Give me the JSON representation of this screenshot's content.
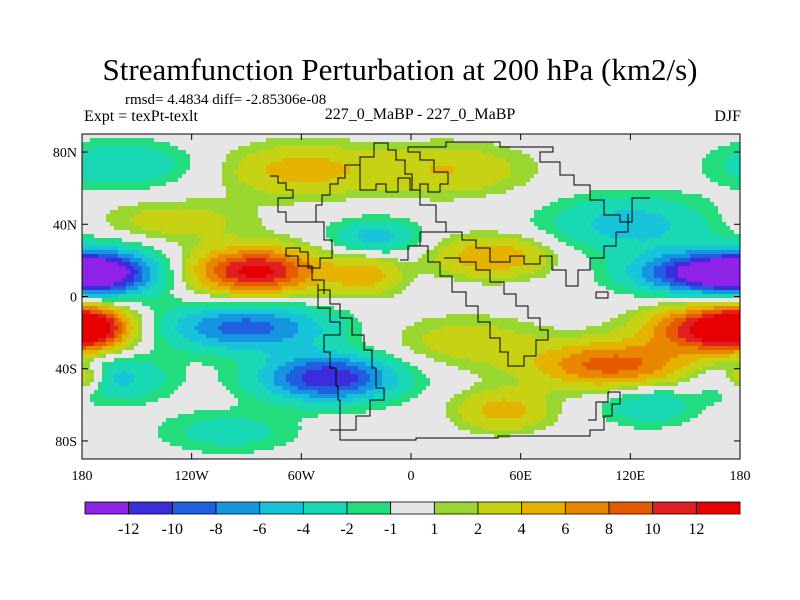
{
  "chart_data": {
    "type": "heatmap",
    "title": "Streamfunction Perturbation at 200 hPa (km2/s)",
    "subtitle_left_top": "rmsd= 4.4834 diff= -2.85306e-08",
    "subtitle_left": "Expt = texPt-texlt",
    "subtitle_center": "227_0_MaBP - 227_0_MaBP",
    "subtitle_right": "DJF",
    "xlabel": "",
    "ylabel": "",
    "xlim": [
      -180,
      180
    ],
    "ylim": [
      -90,
      90
    ],
    "x_ticks": [
      {
        "value": -180,
        "label": "180"
      },
      {
        "value": -120,
        "label": "120W"
      },
      {
        "value": -60,
        "label": "60W"
      },
      {
        "value": 0,
        "label": "0"
      },
      {
        "value": 60,
        "label": "60E"
      },
      {
        "value": 120,
        "label": "120E"
      },
      {
        "value": 180,
        "label": "180"
      }
    ],
    "y_ticks": [
      {
        "value": 80,
        "label": "80N"
      },
      {
        "value": 40,
        "label": "40N"
      },
      {
        "value": 0,
        "label": "0"
      },
      {
        "value": -40,
        "label": "40S"
      },
      {
        "value": -80,
        "label": "80S"
      }
    ],
    "colorbar": {
      "levels": [
        "-12",
        "-10",
        "-8",
        "-6",
        "-4",
        "-2",
        "-1",
        "1",
        "2",
        "4",
        "6",
        "8",
        "10",
        "12"
      ],
      "colors": [
        "#8e22e6",
        "#3b2ddc",
        "#1f5fe0",
        "#1696e0",
        "#16c3d8",
        "#18d9b4",
        "#22dc7e",
        "#e6e6e6",
        "#9ad630",
        "#c8d214",
        "#e6b200",
        "#e88600",
        "#e65a00",
        "#e02020",
        "#e60000"
      ]
    },
    "anomaly_centers": [
      {
        "lon": -168,
        "lat": 13,
        "value": -12,
        "sx": 22,
        "sy": 9
      },
      {
        "lon": 158,
        "lat": 13,
        "value": -12,
        "sx": 26,
        "sy": 8
      },
      {
        "lon": -45,
        "lat": -45,
        "value": -12,
        "sx": 26,
        "sy": 9
      },
      {
        "lon": -90,
        "lat": -17,
        "value": -9,
        "sx": 32,
        "sy": 9
      },
      {
        "lon": -165,
        "lat": -45,
        "value": -5,
        "sx": 22,
        "sy": 9
      },
      {
        "lon": -20,
        "lat": 33,
        "value": -5,
        "sx": 17,
        "sy": 7
      },
      {
        "lon": 120,
        "lat": 40,
        "value": -5,
        "sx": 32,
        "sy": 11
      },
      {
        "lon": 130,
        "lat": -60,
        "value": -4,
        "sx": 18,
        "sy": 8
      },
      {
        "lon": -158,
        "lat": 73,
        "value": -4,
        "sx": 26,
        "sy": 9
      },
      {
        "lon": -100,
        "lat": -75,
        "value": -3,
        "sx": 26,
        "sy": 8
      },
      {
        "lon": -85,
        "lat": 14,
        "value": 13,
        "sx": 24,
        "sy": 9
      },
      {
        "lon": 165,
        "lat": -18,
        "value": 13,
        "sx": 24,
        "sy": 9
      },
      {
        "lon": -175,
        "lat": -17,
        "value": 10,
        "sx": 14,
        "sy": 8
      },
      {
        "lon": 110,
        "lat": -38,
        "value": 9,
        "sx": 30,
        "sy": 9
      },
      {
        "lon": -178,
        "lat": -45,
        "value": 6,
        "sx": 8,
        "sy": 6
      },
      {
        "lon": 45,
        "lat": 22,
        "value": 6,
        "sx": 22,
        "sy": 8
      },
      {
        "lon": -60,
        "lat": 70,
        "value": 5,
        "sx": 28,
        "sy": 10
      },
      {
        "lon": -25,
        "lat": 12,
        "value": 5,
        "sx": 14,
        "sy": 8
      },
      {
        "lon": 50,
        "lat": -63,
        "value": 5,
        "sx": 18,
        "sy": 8
      },
      {
        "lon": 20,
        "lat": 70,
        "value": 4,
        "sx": 30,
        "sy": 10
      },
      {
        "lon": 30,
        "lat": -25,
        "value": 3,
        "sx": 30,
        "sy": 10
      },
      {
        "lon": -130,
        "lat": 42,
        "value": 3,
        "sx": 30,
        "sy": 8
      }
    ]
  }
}
